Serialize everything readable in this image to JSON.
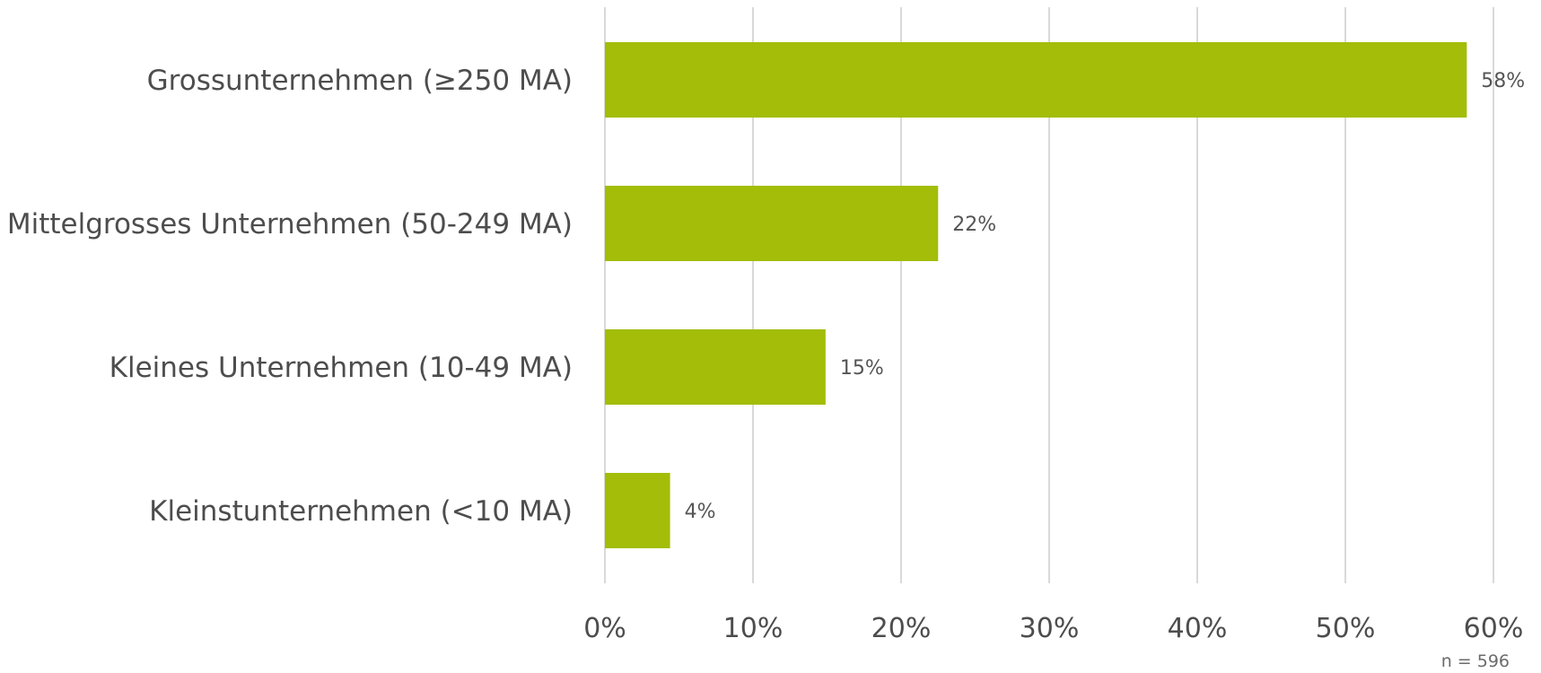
{
  "chart_data": {
    "type": "bar",
    "orientation": "horizontal",
    "categories": [
      "Grossunternehmen (≥250 MA)",
      "Mittelgrosses Unternehmen (50-249 MA)",
      "Kleines Unternehmen (10-49 MA)",
      "Kleinstunternehmen (<10 MA)"
    ],
    "values": [
      58,
      22,
      15,
      4
    ],
    "value_labels": [
      "58%",
      "22%",
      "15%",
      "4%"
    ],
    "exact_values": [
      58.2,
      22.5,
      14.9,
      4.4
    ],
    "xlim": [
      0,
      60
    ],
    "x_ticks": [
      0,
      10,
      20,
      30,
      40,
      50,
      60
    ],
    "x_tick_labels": [
      "0%",
      "10%",
      "20%",
      "30%",
      "40%",
      "50%",
      "60%"
    ],
    "grid": "vertical",
    "legend": "none",
    "bar_color": "#a3bd08",
    "note": "n = 596"
  }
}
